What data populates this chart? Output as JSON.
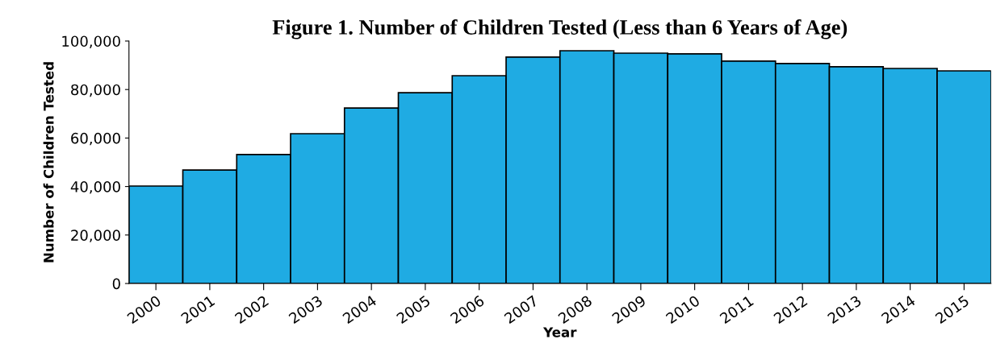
{
  "chart_data": {
    "type": "bar",
    "title": "Figure 1. Number of Children Tested (Less than 6 Years of Age)",
    "xlabel": "Year",
    "ylabel": "Number of Children Tested",
    "categories": [
      "2000",
      "2001",
      "2002",
      "2003",
      "2004",
      "2005",
      "2006",
      "2007",
      "2008",
      "2009",
      "2010",
      "2011",
      "2012",
      "2013",
      "2014",
      "2015"
    ],
    "values": [
      40200,
      46800,
      53200,
      61800,
      72400,
      78700,
      85700,
      93400,
      96000,
      95000,
      94700,
      91700,
      90700,
      89400,
      88700,
      87700
    ],
    "color": "#1fabe3",
    "ylim": [
      0,
      100000
    ],
    "yticks": [
      {
        "value": 0,
        "label": "0"
      },
      {
        "value": 20000,
        "label": "20,000"
      },
      {
        "value": 40000,
        "label": "40,000"
      },
      {
        "value": 60000,
        "label": "60,000"
      },
      {
        "value": 80000,
        "label": "80,000"
      },
      {
        "value": 100000,
        "label": "100,000"
      }
    ],
    "grid": false,
    "legend": false
  }
}
